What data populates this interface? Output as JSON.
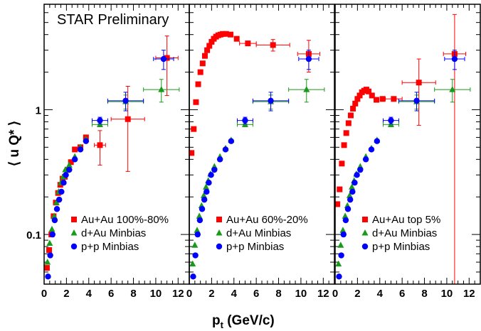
{
  "chart_data": {
    "type": "scatter",
    "preliminary_label": "STAR Preliminary",
    "xlabel_main": "p",
    "xlabel_sub": "t",
    "xlabel_unit": " (GeV/c)",
    "ylabel": "⟨ u Q* ⟩",
    "yscale": "log",
    "ylim": [
      0.04,
      7
    ],
    "xlim": [
      0,
      13
    ],
    "x_ticks": [
      "0",
      "2",
      "4",
      "6",
      "8",
      "10",
      "12"
    ],
    "y_ticks": [
      {
        "value": 0.1,
        "label": "0.1"
      },
      {
        "value": 1,
        "label": "1"
      }
    ],
    "colors": {
      "auau": "#ff0000",
      "dau": "#1a9a1a",
      "pp": "#0000ff",
      "frame": "#000000"
    },
    "panels": [
      {
        "legend": [
          "Au+Au 100%-80%",
          "d+Au Minbias",
          "p+p Minbias"
        ],
        "series": [
          {
            "name": "Au+Au 100%-80%",
            "key": "auau",
            "marker": "square",
            "points": [
              {
                "x": 0.25,
                "y": 0.054
              },
              {
                "x": 0.45,
                "y": 0.075
              },
              {
                "x": 0.65,
                "y": 0.1
              },
              {
                "x": 0.85,
                "y": 0.14
              },
              {
                "x": 1.05,
                "y": 0.18
              },
              {
                "x": 1.25,
                "y": 0.215
              },
              {
                "x": 1.45,
                "y": 0.25
              },
              {
                "x": 1.65,
                "y": 0.28
              },
              {
                "x": 1.85,
                "y": 0.29
              },
              {
                "x": 2.1,
                "y": 0.33
              },
              {
                "x": 2.4,
                "y": 0.38
              },
              {
                "x": 2.75,
                "y": 0.48
              },
              {
                "x": 3.25,
                "y": 0.5
              },
              {
                "x": 3.75,
                "y": 0.6
              },
              {
                "x": 5.0,
                "y": 0.52,
                "xerr": 0.5,
                "yerr_lo": 0.16,
                "yerr_hi": 0.16
              },
              {
                "x": 7.5,
                "y": 0.84,
                "xerr": 1.5,
                "yerr_lo": 0.52,
                "yerr_hi": 0.7
              },
              {
                "x": 11.0,
                "y": 2.6,
                "xerr": 1.0,
                "yerr_lo": 1.3,
                "yerr_hi": 1.3
              }
            ]
          },
          {
            "name": "d+Au Minbias",
            "key": "dau",
            "marker": "triangle",
            "points": [
              {
                "x": 0.3,
                "y": 0.06
              },
              {
                "x": 0.5,
                "y": 0.085
              },
              {
                "x": 0.7,
                "y": 0.11
              },
              {
                "x": 0.9,
                "y": 0.14
              },
              {
                "x": 1.1,
                "y": 0.18
              },
              {
                "x": 1.3,
                "y": 0.22
              },
              {
                "x": 1.5,
                "y": 0.26
              },
              {
                "x": 1.7,
                "y": 0.29
              },
              {
                "x": 1.9,
                "y": 0.33
              },
              {
                "x": 2.25,
                "y": 0.36
              },
              {
                "x": 2.75,
                "y": 0.42
              },
              {
                "x": 3.25,
                "y": 0.5
              },
              {
                "x": 3.75,
                "y": 0.58
              },
              {
                "x": 5.0,
                "y": 0.76,
                "xerr": 0.7,
                "yerr_lo": 0.03,
                "yerr_hi": 0.03
              },
              {
                "x": 7.3,
                "y": 1.16,
                "xerr": 1.6,
                "yerr_lo": 0.15,
                "yerr_hi": 0.15
              },
              {
                "x": 10.5,
                "y": 1.45,
                "xerr": 1.6,
                "yerr_lo": 0.3,
                "yerr_hi": 0.3
              }
            ]
          },
          {
            "name": "p+p Minbias",
            "key": "pp",
            "marker": "circle",
            "points": [
              {
                "x": 0.35,
                "y": 0.046
              },
              {
                "x": 0.55,
                "y": 0.068
              },
              {
                "x": 0.75,
                "y": 0.1
              },
              {
                "x": 0.95,
                "y": 0.13
              },
              {
                "x": 1.15,
                "y": 0.16
              },
              {
                "x": 1.35,
                "y": 0.19
              },
              {
                "x": 1.55,
                "y": 0.22
              },
              {
                "x": 1.75,
                "y": 0.26
              },
              {
                "x": 1.95,
                "y": 0.3
              },
              {
                "x": 2.25,
                "y": 0.33
              },
              {
                "x": 2.75,
                "y": 0.4
              },
              {
                "x": 3.25,
                "y": 0.48
              },
              {
                "x": 3.75,
                "y": 0.56
              },
              {
                "x": 5.0,
                "y": 0.82,
                "xerr": 0.7,
                "yerr_lo": 0.05,
                "yerr_hi": 0.05
              },
              {
                "x": 7.3,
                "y": 1.18,
                "xerr": 1.6,
                "yerr_lo": 0.2,
                "yerr_hi": 0.2
              },
              {
                "x": 10.7,
                "y": 2.55,
                "xerr": 0.9,
                "yerr_lo": 0.45,
                "yerr_hi": 0.45
              }
            ]
          }
        ]
      },
      {
        "legend": [
          "Au+Au 60%-20%",
          "d+Au Minbias",
          "p+p Minbias"
        ],
        "series": [
          {
            "name": "Au+Au 60%-20%",
            "key": "auau",
            "marker": "square",
            "points": [
              {
                "x": 0.2,
                "y": 0.45
              },
              {
                "x": 0.4,
                "y": 0.7
              },
              {
                "x": 0.6,
                "y": 1.15
              },
              {
                "x": 0.8,
                "y": 1.6
              },
              {
                "x": 1.0,
                "y": 2.0
              },
              {
                "x": 1.2,
                "y": 2.35
              },
              {
                "x": 1.4,
                "y": 2.7
              },
              {
                "x": 1.6,
                "y": 3.0
              },
              {
                "x": 1.8,
                "y": 3.25
              },
              {
                "x": 2.0,
                "y": 3.5
              },
              {
                "x": 2.2,
                "y": 3.7
              },
              {
                "x": 2.4,
                "y": 3.85
              },
              {
                "x": 2.6,
                "y": 3.95
              },
              {
                "x": 2.8,
                "y": 4.0
              },
              {
                "x": 3.0,
                "y": 4.05
              },
              {
                "x": 3.3,
                "y": 4.05
              },
              {
                "x": 3.7,
                "y": 4.0
              },
              {
                "x": 4.25,
                "y": 3.7
              },
              {
                "x": 5.25,
                "y": 3.4,
                "xerr": 0.75,
                "yerr_lo": 0.08,
                "yerr_hi": 0.08
              },
              {
                "x": 7.5,
                "y": 3.3,
                "xerr": 1.5,
                "yerr_lo": 0.35,
                "yerr_hi": 0.35
              },
              {
                "x": 10.7,
                "y": 2.8,
                "xerr": 1.0,
                "yerr_lo": 0.8,
                "yerr_hi": 0.8
              }
            ]
          },
          {
            "name": "d+Au Minbias",
            "key": "dau",
            "marker": "triangle",
            "points": [
              {
                "x": 0.3,
                "y": 0.058
              },
              {
                "x": 0.5,
                "y": 0.082
              },
              {
                "x": 0.7,
                "y": 0.108
              },
              {
                "x": 0.9,
                "y": 0.14
              },
              {
                "x": 1.1,
                "y": 0.17
              },
              {
                "x": 1.3,
                "y": 0.205
              },
              {
                "x": 1.5,
                "y": 0.24
              },
              {
                "x": 1.7,
                "y": 0.27
              },
              {
                "x": 1.9,
                "y": 0.305
              },
              {
                "x": 2.25,
                "y": 0.35
              },
              {
                "x": 2.75,
                "y": 0.42
              },
              {
                "x": 3.25,
                "y": 0.49
              },
              {
                "x": 3.75,
                "y": 0.57
              },
              {
                "x": 5.0,
                "y": 0.76,
                "xerr": 0.7,
                "yerr_lo": 0.03,
                "yerr_hi": 0.03
              },
              {
                "x": 7.3,
                "y": 1.16,
                "xerr": 1.6,
                "yerr_lo": 0.15,
                "yerr_hi": 0.15
              },
              {
                "x": 10.5,
                "y": 1.45,
                "xerr": 1.6,
                "yerr_lo": 0.3,
                "yerr_hi": 0.3
              }
            ]
          },
          {
            "name": "p+p Minbias",
            "key": "pp",
            "marker": "circle",
            "points": [
              {
                "x": 0.35,
                "y": 0.046
              },
              {
                "x": 0.55,
                "y": 0.068
              },
              {
                "x": 0.75,
                "y": 0.1
              },
              {
                "x": 0.95,
                "y": 0.13
              },
              {
                "x": 1.15,
                "y": 0.16
              },
              {
                "x": 1.35,
                "y": 0.19
              },
              {
                "x": 1.55,
                "y": 0.22
              },
              {
                "x": 1.75,
                "y": 0.26
              },
              {
                "x": 1.95,
                "y": 0.3
              },
              {
                "x": 2.25,
                "y": 0.33
              },
              {
                "x": 2.75,
                "y": 0.4
              },
              {
                "x": 3.25,
                "y": 0.48
              },
              {
                "x": 3.75,
                "y": 0.56
              },
              {
                "x": 5.0,
                "y": 0.82,
                "xerr": 0.7,
                "yerr_lo": 0.05,
                "yerr_hi": 0.05
              },
              {
                "x": 7.3,
                "y": 1.18,
                "xerr": 1.6,
                "yerr_lo": 0.2,
                "yerr_hi": 0.2
              },
              {
                "x": 10.7,
                "y": 2.55,
                "xerr": 0.9,
                "yerr_lo": 0.45,
                "yerr_hi": 0.45
              }
            ]
          }
        ]
      },
      {
        "legend": [
          "Au+Au top 5%",
          "d+Au Minbias",
          "p+p Minbias"
        ],
        "series": [
          {
            "name": "Au+Au top 5%",
            "key": "auau",
            "marker": "square",
            "points": [
              {
                "x": 0.2,
                "y": 0.175
              },
              {
                "x": 0.4,
                "y": 0.23
              },
              {
                "x": 0.6,
                "y": 0.37
              },
              {
                "x": 0.8,
                "y": 0.52
              },
              {
                "x": 1.0,
                "y": 0.65
              },
              {
                "x": 1.2,
                "y": 0.78
              },
              {
                "x": 1.4,
                "y": 0.9
              },
              {
                "x": 1.6,
                "y": 1.02
              },
              {
                "x": 1.8,
                "y": 1.12
              },
              {
                "x": 2.0,
                "y": 1.22
              },
              {
                "x": 2.2,
                "y": 1.3
              },
              {
                "x": 2.4,
                "y": 1.38
              },
              {
                "x": 2.6,
                "y": 1.42
              },
              {
                "x": 2.8,
                "y": 1.45
              },
              {
                "x": 3.0,
                "y": 1.4
              },
              {
                "x": 3.3,
                "y": 1.3
              },
              {
                "x": 3.7,
                "y": 1.2
              },
              {
                "x": 4.25,
                "y": 1.22
              },
              {
                "x": 5.25,
                "y": 1.22,
                "xerr": 0.75,
                "yerr_lo": 0.05,
                "yerr_hi": 0.05
              },
              {
                "x": 7.5,
                "y": 1.65,
                "xerr": 1.5,
                "yerr_lo": 0.9,
                "yerr_hi": 0.9
              },
              {
                "x": 10.7,
                "y": 2.8,
                "xerr": 1.0,
                "yerr_lo": 2.77,
                "yerr_hi": 3.0
              }
            ]
          },
          {
            "name": "d+Au Minbias",
            "key": "dau",
            "marker": "triangle",
            "points": [
              {
                "x": 0.3,
                "y": 0.058
              },
              {
                "x": 0.5,
                "y": 0.082
              },
              {
                "x": 0.7,
                "y": 0.108
              },
              {
                "x": 0.9,
                "y": 0.14
              },
              {
                "x": 1.1,
                "y": 0.17
              },
              {
                "x": 1.3,
                "y": 0.205
              },
              {
                "x": 1.5,
                "y": 0.24
              },
              {
                "x": 1.7,
                "y": 0.27
              },
              {
                "x": 1.9,
                "y": 0.305
              },
              {
                "x": 2.25,
                "y": 0.35
              },
              {
                "x": 2.75,
                "y": 0.42
              },
              {
                "x": 3.25,
                "y": 0.49
              },
              {
                "x": 3.75,
                "y": 0.57
              },
              {
                "x": 5.0,
                "y": 0.76,
                "xerr": 0.7,
                "yerr_lo": 0.03,
                "yerr_hi": 0.03
              },
              {
                "x": 7.3,
                "y": 1.16,
                "xerr": 1.6,
                "yerr_lo": 0.15,
                "yerr_hi": 0.15
              },
              {
                "x": 10.5,
                "y": 1.45,
                "xerr": 1.6,
                "yerr_lo": 0.3,
                "yerr_hi": 0.3
              }
            ]
          },
          {
            "name": "p+p Minbias",
            "key": "pp",
            "marker": "circle",
            "points": [
              {
                "x": 0.35,
                "y": 0.046
              },
              {
                "x": 0.55,
                "y": 0.068
              },
              {
                "x": 0.75,
                "y": 0.1
              },
              {
                "x": 0.95,
                "y": 0.13
              },
              {
                "x": 1.15,
                "y": 0.16
              },
              {
                "x": 1.35,
                "y": 0.19
              },
              {
                "x": 1.55,
                "y": 0.22
              },
              {
                "x": 1.75,
                "y": 0.26
              },
              {
                "x": 1.95,
                "y": 0.3
              },
              {
                "x": 2.25,
                "y": 0.33
              },
              {
                "x": 2.75,
                "y": 0.4
              },
              {
                "x": 3.25,
                "y": 0.48
              },
              {
                "x": 3.75,
                "y": 0.56
              },
              {
                "x": 5.0,
                "y": 0.82,
                "xerr": 0.7,
                "yerr_lo": 0.05,
                "yerr_hi": 0.05
              },
              {
                "x": 7.3,
                "y": 1.18,
                "xerr": 1.6,
                "yerr_lo": 0.2,
                "yerr_hi": 0.2
              },
              {
                "x": 10.7,
                "y": 2.55,
                "xerr": 0.9,
                "yerr_lo": 0.45,
                "yerr_hi": 0.45
              }
            ]
          }
        ]
      }
    ]
  }
}
